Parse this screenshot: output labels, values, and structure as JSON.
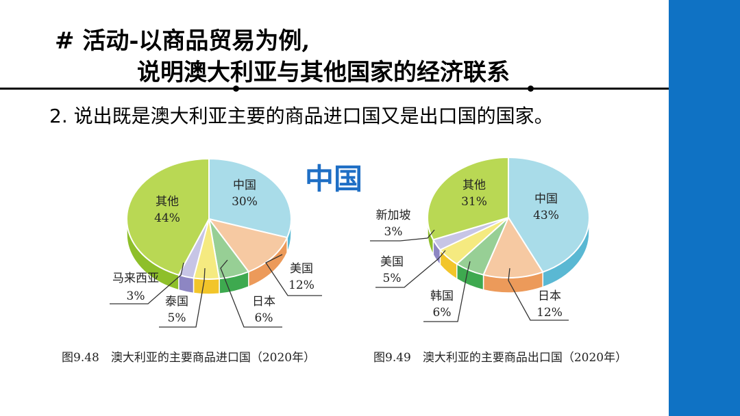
{
  "slide": {
    "title_line1": "# 活动-以商品贸易为例,",
    "title_line2": "说明澳大利亚与其他国家的经济联系",
    "question_number": "2.",
    "question_text": "说出既是澳大利亚主要的商品进口国又是出口国的国家。",
    "answer": "中国",
    "answer_color": "#1f6fc5",
    "band_color": "#0f72c4"
  },
  "chart_data": [
    {
      "type": "pie",
      "caption": "图9.48　澳大利亚的主要商品进口国（2020年）",
      "slices": [
        {
          "name": "中国",
          "value": 30,
          "color": "#a9dce9",
          "side": "#5ab8d3"
        },
        {
          "name": "美国",
          "value": 12,
          "color": "#f6c9a2",
          "side": "#ec9a5a"
        },
        {
          "name": "日本",
          "value": 6,
          "color": "#97cf95",
          "side": "#3ea94f"
        },
        {
          "name": "泰国",
          "value": 5,
          "color": "#f5ea80",
          "side": "#f2c52a"
        },
        {
          "name": "马来西亚",
          "value": 3,
          "color": "#c7c5e6",
          "side": "#8d86c3"
        },
        {
          "name": "其他",
          "value": 44,
          "color": "#b9d854",
          "side": "#8ebf2a"
        }
      ],
      "labels": [
        {
          "name": "中国",
          "pct": "30%"
        },
        {
          "name": "美国",
          "pct": "12%"
        },
        {
          "name": "日本",
          "pct": "6%"
        },
        {
          "name": "泰国",
          "pct": "5%"
        },
        {
          "name": "马来西亚",
          "pct": "3%"
        },
        {
          "name": "其他",
          "pct": "44%"
        }
      ]
    },
    {
      "type": "pie",
      "caption": "图9.49　澳大利亚的主要商品出口国（2020年）",
      "slices": [
        {
          "name": "中国",
          "value": 43,
          "color": "#a9dce9",
          "side": "#5ab8d3"
        },
        {
          "name": "日本",
          "value": 12,
          "color": "#f6c9a2",
          "side": "#ec9a5a"
        },
        {
          "name": "韩国",
          "value": 6,
          "color": "#97cf95",
          "side": "#3ea94f"
        },
        {
          "name": "美国",
          "value": 5,
          "color": "#f5ea80",
          "side": "#f2c52a"
        },
        {
          "name": "新加坡",
          "value": 3,
          "color": "#c7c5e6",
          "side": "#8d86c3"
        },
        {
          "name": "其他",
          "value": 31,
          "color": "#b9d854",
          "side": "#8ebf2a"
        }
      ],
      "labels": [
        {
          "name": "中国",
          "pct": "43%"
        },
        {
          "name": "日本",
          "pct": "12%"
        },
        {
          "name": "韩国",
          "pct": "6%"
        },
        {
          "name": "美国",
          "pct": "5%"
        },
        {
          "name": "新加坡",
          "pct": "3%"
        },
        {
          "name": "其他",
          "pct": "31%"
        }
      ]
    }
  ]
}
